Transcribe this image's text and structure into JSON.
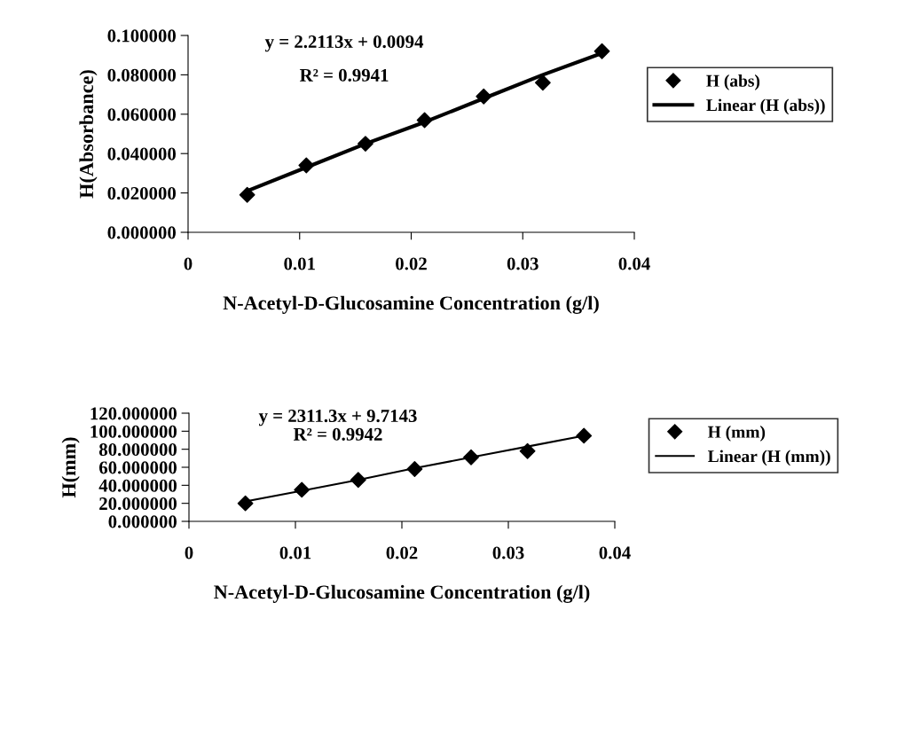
{
  "chart_data": [
    {
      "type": "scatter",
      "xlabel": "N-Acetyl-D-Glucosamine Concentration (g/l)",
      "ylabel": "H(Absorbance)",
      "annotations": [
        "y = 2.2113x + 0.0094",
        "R² = 0.9941"
      ],
      "x": [
        0.0053,
        0.0106,
        0.0159,
        0.0212,
        0.0265,
        0.0318,
        0.0371
      ],
      "series": [
        {
          "name": "H (abs)",
          "color": "#000000",
          "marker": "diamond",
          "values": [
            0.019,
            0.034,
            0.045,
            0.057,
            0.069,
            0.076,
            0.092
          ]
        },
        {
          "name": "Linear (H (abs))",
          "type": "line",
          "color": "#000000",
          "values": [
            0.021,
            0.033,
            0.045,
            0.056,
            0.068,
            0.08,
            0.091
          ]
        }
      ],
      "xlim": [
        0,
        0.04
      ],
      "xticks": [
        0,
        0.01,
        0.02,
        0.03,
        0.04
      ],
      "ylim": [
        0,
        0.1
      ],
      "yticks": [
        {
          "value": 0,
          "label": "0.000000"
        },
        {
          "value": 0.02,
          "label": "0.020000"
        },
        {
          "value": 0.04,
          "label": "0.040000"
        },
        {
          "value": 0.06,
          "label": "0.060000"
        },
        {
          "value": 0.08,
          "label": "0.080000"
        },
        {
          "value": 0.1,
          "label": "0.100000"
        }
      ],
      "legend": "right",
      "grid": false
    },
    {
      "type": "scatter",
      "xlabel": "N-Acetyl-D-Glucosamine Concentration (g/l)",
      "ylabel": "H(mm)",
      "annotations": [
        "y = 2311.3x + 9.7143",
        "R² = 0.9942"
      ],
      "x": [
        0.0053,
        0.0106,
        0.0159,
        0.0212,
        0.0265,
        0.0318,
        0.0371
      ],
      "series": [
        {
          "name": "H (mm)",
          "color": "#000000",
          "marker": "diamond",
          "values": [
            20,
            35,
            46,
            58,
            71,
            78,
            95
          ]
        },
        {
          "name": "Linear (H (mm))",
          "type": "line",
          "color": "#000000",
          "values": [
            22,
            34,
            46,
            59,
            71,
            83,
            95
          ]
        }
      ],
      "xlim": [
        0,
        0.04
      ],
      "xticks": [
        0,
        0.01,
        0.02,
        0.03,
        0.04
      ],
      "ylim": [
        0,
        120
      ],
      "yticks": [
        {
          "value": 0,
          "label": "0.000000"
        },
        {
          "value": 20,
          "label": "20.000000"
        },
        {
          "value": 40,
          "label": "40.000000"
        },
        {
          "value": 60,
          "label": "60.000000"
        },
        {
          "value": 80,
          "label": "80.000000"
        },
        {
          "value": 100,
          "label": "100.000000"
        },
        {
          "value": 120,
          "label": "120.000000"
        }
      ],
      "legend": "right",
      "grid": false
    }
  ]
}
